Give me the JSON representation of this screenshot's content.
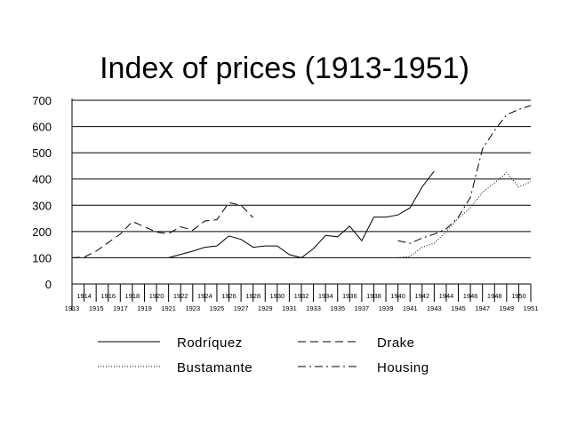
{
  "chart_data": {
    "type": "line",
    "title": "Index of prices (1913-1951)",
    "xlabel": "",
    "ylabel": "",
    "xlim": [
      1913,
      1951
    ],
    "ylim": [
      0,
      700
    ],
    "yticks": [
      0,
      100,
      200,
      300,
      400,
      500,
      600,
      700
    ],
    "xticks_upper": [
      "1914",
      "1916",
      "1918",
      "1920",
      "1922",
      "1924",
      "1926",
      "1928",
      "1930",
      "1932",
      "1934",
      "1936",
      "1938",
      "1940",
      "1942",
      "1944",
      "1946",
      "1948",
      "1950"
    ],
    "xticks_lower": [
      "1913",
      "1915",
      "1917",
      "1919",
      "1921",
      "1923",
      "1925",
      "1927",
      "1929",
      "1931",
      "1933",
      "1935",
      "1937",
      "1939",
      "1941",
      "1943",
      "1945",
      "1947",
      "1949",
      "1951"
    ],
    "grid": true,
    "legend_position": "bottom",
    "series": [
      {
        "name": "Drake",
        "style": "dashed",
        "x": [
          1913,
          1914,
          1915,
          1916,
          1917,
          1918,
          1919,
          1920,
          1921,
          1922,
          1923,
          1924,
          1925,
          1926,
          1927,
          1928
        ],
        "y": [
          100,
          102,
          125,
          158,
          190,
          238,
          218,
          197,
          192,
          218,
          205,
          240,
          245,
          310,
          300,
          253
        ]
      },
      {
        "name": "Rodríquez",
        "style": "solid",
        "x": [
          1921,
          1922,
          1923,
          1924,
          1925,
          1926,
          1927,
          1928,
          1929,
          1930,
          1931,
          1932,
          1933,
          1934,
          1935,
          1936,
          1937,
          1938,
          1939,
          1940,
          1941,
          1942,
          1943
        ],
        "y": [
          100,
          113,
          125,
          140,
          145,
          183,
          170,
          140,
          145,
          145,
          112,
          100,
          135,
          185,
          180,
          220,
          165,
          255,
          255,
          263,
          290,
          370,
          430
        ]
      },
      {
        "name": "Housing",
        "style": "dashdot",
        "x": [
          1940,
          1941,
          1942,
          1943,
          1944,
          1945,
          1946,
          1947,
          1948,
          1949,
          1950,
          1951
        ],
        "y": [
          165,
          155,
          175,
          190,
          210,
          255,
          330,
          515,
          585,
          645,
          665,
          680
        ]
      },
      {
        "name": "Bustamante",
        "style": "dotted",
        "x": [
          1940,
          1941,
          1942,
          1943,
          1944,
          1945,
          1946,
          1947,
          1948,
          1949,
          1950,
          1951
        ],
        "y": [
          100,
          105,
          140,
          155,
          200,
          250,
          290,
          350,
          385,
          425,
          370,
          390
        ]
      }
    ],
    "legend": {
      "rodriquez": "Rodríquez",
      "drake": "Drake",
      "bustamante": "Bustamante",
      "housing": "Housing"
    }
  }
}
